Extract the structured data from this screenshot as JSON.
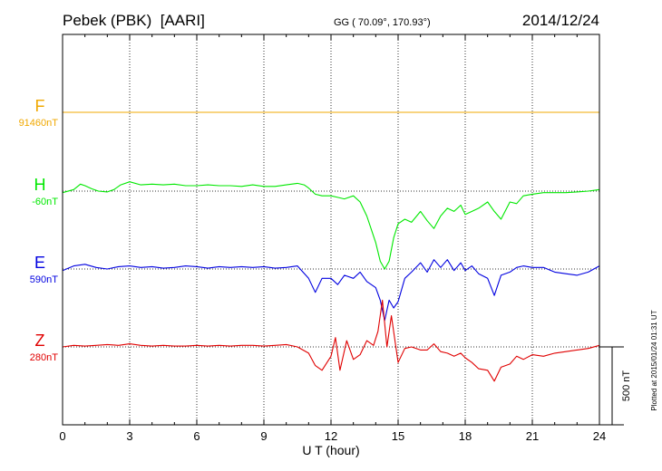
{
  "header": {
    "station": "Pebek (PBK)  [AARI]",
    "coords": "GG ( 70.09°, 170.93°)",
    "date": "2014/12/24"
  },
  "side_note": "Plotted at 2015/01/24 01:31  UT",
  "scale_label": "500 nT",
  "chart_data": {
    "type": "line",
    "xlabel": "U T (hour)",
    "ylabel": "",
    "xlim": [
      0,
      24
    ],
    "x_ticks": [
      0,
      3,
      6,
      9,
      12,
      15,
      18,
      21,
      24
    ],
    "grid": true,
    "scale_bar_nT": 500,
    "series": [
      {
        "name": "F",
        "baseline_label": "91460nT",
        "color": "#f0a800",
        "x": [
          0,
          24
        ],
        "y": [
          0,
          0
        ]
      },
      {
        "name": "H",
        "baseline_label": "-60nT",
        "color": "#00e800",
        "x": [
          0,
          0.5,
          0.8,
          1,
          1.3,
          1.6,
          2,
          2.3,
          2.6,
          3,
          3.5,
          4,
          4.5,
          5,
          5.5,
          6,
          6.5,
          7,
          7.5,
          8,
          8.5,
          9,
          9.5,
          10,
          10.5,
          10.8,
          11,
          11.3,
          11.6,
          12,
          12.3,
          12.6,
          13,
          13.3,
          13.6,
          14,
          14.2,
          14.4,
          14.6,
          14.8,
          15,
          15.3,
          15.6,
          16,
          16.3,
          16.6,
          16.9,
          17.2,
          17.5,
          17.8,
          18,
          18.3,
          18.6,
          19,
          19.3,
          19.6,
          20,
          20.3,
          20.6,
          21,
          21.5,
          22,
          22.5,
          23,
          23.5,
          24
        ],
        "y": [
          -10,
          10,
          45,
          35,
          15,
          0,
          -5,
          10,
          40,
          60,
          40,
          45,
          40,
          45,
          35,
          35,
          40,
          35,
          35,
          30,
          40,
          30,
          30,
          40,
          50,
          40,
          20,
          -20,
          -30,
          -30,
          -40,
          -50,
          -30,
          -70,
          -160,
          -330,
          -450,
          -500,
          -450,
          -300,
          -210,
          -180,
          -200,
          -130,
          -190,
          -240,
          -160,
          -110,
          -130,
          -90,
          -150,
          -130,
          -110,
          -70,
          -130,
          -180,
          -70,
          -80,
          -30,
          -20,
          -10,
          -10,
          -10,
          -5,
          0,
          10
        ]
      },
      {
        "name": "E",
        "baseline_label": "590nT",
        "color": "#0000e0",
        "x": [
          0,
          0.5,
          1,
          1.5,
          2,
          2.5,
          3,
          3.5,
          4,
          4.5,
          5,
          5.5,
          6,
          6.5,
          7,
          7.5,
          8,
          8.5,
          9,
          9.5,
          10,
          10.5,
          11,
          11.3,
          11.6,
          12,
          12.3,
          12.6,
          13,
          13.3,
          13.6,
          14,
          14.2,
          14.4,
          14.6,
          14.8,
          15,
          15.3,
          15.6,
          16,
          16.3,
          16.6,
          16.9,
          17.2,
          17.5,
          17.8,
          18,
          18.3,
          18.6,
          19,
          19.3,
          19.6,
          20,
          20.3,
          20.6,
          21,
          21.5,
          22,
          22.5,
          23,
          23.5,
          24
        ],
        "y": [
          -10,
          20,
          30,
          10,
          0,
          15,
          20,
          10,
          15,
          5,
          10,
          20,
          15,
          5,
          15,
          10,
          15,
          10,
          15,
          5,
          10,
          20,
          -60,
          -150,
          -60,
          -60,
          -100,
          -40,
          -60,
          -20,
          -80,
          -120,
          -200,
          -330,
          -200,
          -250,
          -210,
          -60,
          -20,
          40,
          -20,
          60,
          10,
          60,
          -10,
          40,
          -10,
          20,
          -30,
          -60,
          -170,
          -40,
          -20,
          10,
          20,
          10,
          10,
          -20,
          -30,
          -40,
          -20,
          20
        ]
      },
      {
        "name": "Z",
        "baseline_label": "280nT",
        "color": "#e00000",
        "x": [
          0,
          0.5,
          1,
          1.5,
          2,
          2.5,
          3,
          3.5,
          4,
          4.5,
          5,
          5.5,
          6,
          6.5,
          7,
          7.5,
          8,
          8.5,
          9,
          9.5,
          10,
          10.5,
          11,
          11.3,
          11.6,
          12,
          12.2,
          12.4,
          12.7,
          13,
          13.3,
          13.6,
          13.9,
          14.1,
          14.3,
          14.5,
          14.7,
          15,
          15.3,
          15.6,
          16,
          16.3,
          16.6,
          16.9,
          17.2,
          17.5,
          17.8,
          18,
          18.3,
          18.6,
          19,
          19.3,
          19.6,
          20,
          20.3,
          20.6,
          21,
          21.5,
          22,
          22.5,
          23,
          23.5,
          24
        ],
        "y": [
          0,
          10,
          5,
          10,
          15,
          10,
          20,
          10,
          5,
          10,
          5,
          5,
          10,
          5,
          10,
          5,
          10,
          10,
          5,
          10,
          15,
          0,
          -40,
          -120,
          -150,
          -60,
          60,
          -150,
          40,
          -80,
          -50,
          40,
          10,
          100,
          300,
          0,
          200,
          -100,
          -10,
          0,
          -20,
          -20,
          20,
          -30,
          -40,
          -60,
          -40,
          -70,
          -100,
          -140,
          -150,
          -220,
          -130,
          -110,
          -60,
          -80,
          -50,
          -60,
          -40,
          -30,
          -20,
          -10,
          10
        ]
      }
    ]
  }
}
